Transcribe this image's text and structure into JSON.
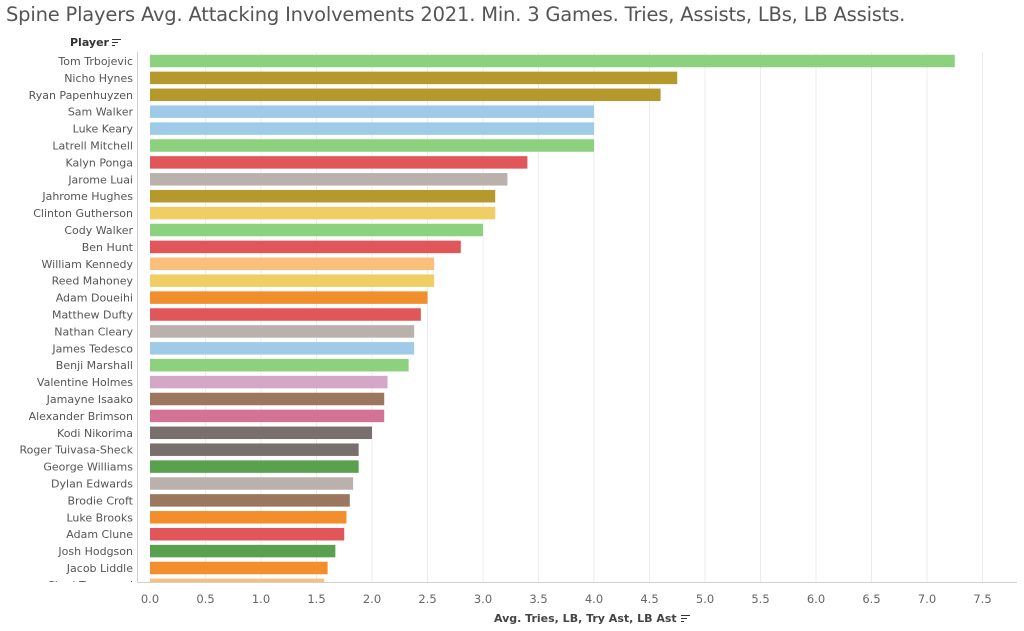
{
  "chart_data": {
    "type": "bar",
    "orientation": "horizontal",
    "title": "Spine Players Avg. Attacking Involvements 2021. Min. 3 Games. Tries, Assists, LBs, LB Assists.",
    "row_header": "Player",
    "xlabel": "Avg. Tries, LB, Try Ast, LB Ast",
    "xlim": [
      0,
      7.5
    ],
    "x_ticks": [
      "0.0",
      "0.5",
      "1.0",
      "1.5",
      "2.0",
      "2.5",
      "3.0",
      "3.5",
      "4.0",
      "4.5",
      "5.0",
      "5.5",
      "6.0",
      "6.5",
      "7.0",
      "7.5"
    ],
    "grid": "vertical",
    "categories": [
      "Tom Trbojevic",
      "Nicho Hynes",
      "Ryan Papenhuyzen",
      "Sam Walker",
      "Luke Keary",
      "Latrell Mitchell",
      "Kalyn Ponga",
      "Jarome Luai",
      "Jahrome Hughes",
      "Clinton Gutherson",
      "Cody Walker",
      "Ben Hunt",
      "William Kennedy",
      "Reed Mahoney",
      "Adam Doueihi",
      "Matthew Dufty",
      "Nathan Cleary",
      "James Tedesco",
      "Benji Marshall",
      "Valentine Holmes",
      "Jamayne Isaako",
      "Alexander Brimson",
      "Kodi Nikorima",
      "Roger Tuivasa-Sheck",
      "George Williams",
      "Dylan Edwards",
      "Brodie Croft",
      "Luke Brooks",
      "Adam Clune",
      "Josh Hodgson",
      "Jacob Liddle",
      "Chad Townsend"
    ],
    "values": [
      7.25,
      4.75,
      4.6,
      4.0,
      4.0,
      4.0,
      3.4,
      3.22,
      3.11,
      3.11,
      3.0,
      2.8,
      2.56,
      2.56,
      2.5,
      2.44,
      2.38,
      2.38,
      2.33,
      2.14,
      2.11,
      2.11,
      2.0,
      1.88,
      1.88,
      1.83,
      1.8,
      1.77,
      1.75,
      1.67,
      1.6,
      1.57
    ],
    "bar_colors": [
      "#8CD17D",
      "#B6992D",
      "#B6992D",
      "#A0CBE8",
      "#A0CBE8",
      "#8CD17D",
      "#E15759",
      "#BAB0AC",
      "#B6992D",
      "#F1CE63",
      "#8CD17D",
      "#E15759",
      "#FABF7B",
      "#F1CE63",
      "#F28E2B",
      "#E15759",
      "#BAB0AC",
      "#A0CBE8",
      "#8CD17D",
      "#D4A6C8",
      "#9D7660",
      "#D37295",
      "#79706E",
      "#79706E",
      "#59A14F",
      "#BAB0AC",
      "#9D7660",
      "#F28E2B",
      "#E15759",
      "#59A14F",
      "#F28E2B",
      "#FABF7B"
    ]
  }
}
